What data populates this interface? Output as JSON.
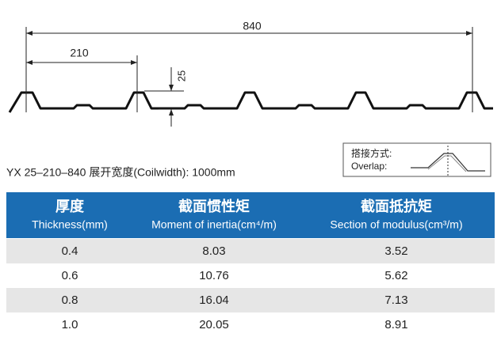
{
  "drawing": {
    "dims": [
      "840",
      "210",
      "25"
    ]
  },
  "spec": "YX 25–210–840  展开宽度(Coilwidth): 1000mm",
  "overlap": {
    "label_zh": "搭接方式:",
    "label_en": "Overlap:"
  },
  "table": {
    "headers": [
      {
        "zh": "厚度",
        "en": "Thickness(mm)"
      },
      {
        "zh": "截面惯性矩",
        "en": "Moment of inertia(cm⁴/m)"
      },
      {
        "zh": "截面抵抗矩",
        "en": "Section of modulus(cm³/m)"
      }
    ],
    "rows": [
      [
        "0.4",
        "8.03",
        "3.52"
      ],
      [
        "0.6",
        "10.76",
        "5.62"
      ],
      [
        "0.8",
        "16.04",
        "7.13"
      ],
      [
        "1.0",
        "20.05",
        "8.91"
      ]
    ]
  }
}
